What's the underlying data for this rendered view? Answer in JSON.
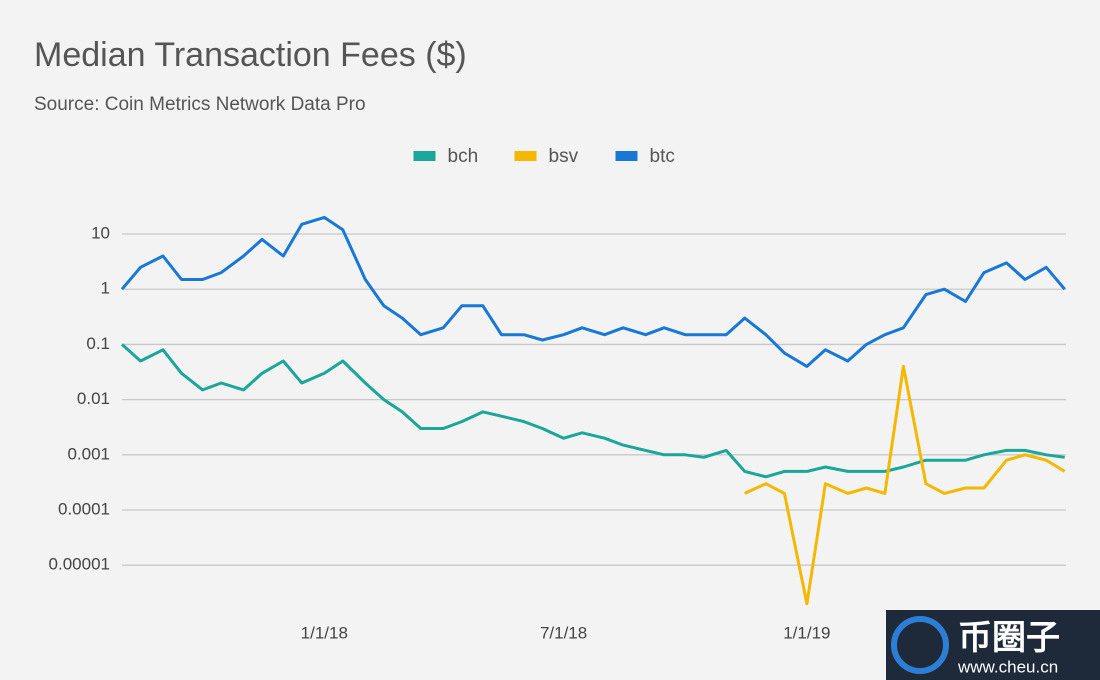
{
  "chart_data": {
    "type": "line",
    "title": "Median Transaction Fees ($)",
    "subtitle": "Source: Coin Metrics Network Data Pro",
    "x": [
      "2017-08-01",
      "2017-08-15",
      "2017-09-01",
      "2017-09-15",
      "2017-10-01",
      "2017-10-15",
      "2017-11-01",
      "2017-11-15",
      "2017-12-01",
      "2017-12-15",
      "2018-01-01",
      "2018-01-15",
      "2018-02-01",
      "2018-02-15",
      "2018-03-01",
      "2018-03-15",
      "2018-04-01",
      "2018-04-15",
      "2018-05-01",
      "2018-05-15",
      "2018-06-01",
      "2018-06-15",
      "2018-07-01",
      "2018-07-15",
      "2018-08-01",
      "2018-08-15",
      "2018-09-01",
      "2018-09-15",
      "2018-10-01",
      "2018-10-15",
      "2018-11-01",
      "2018-11-15",
      "2018-12-01",
      "2018-12-15",
      "2019-01-01",
      "2019-01-15",
      "2019-02-01",
      "2019-02-15",
      "2019-03-01",
      "2019-03-15",
      "2019-04-01",
      "2019-04-15",
      "2019-05-01",
      "2019-05-15",
      "2019-06-01",
      "2019-06-15",
      "2019-07-01",
      "2019-07-15"
    ],
    "series": [
      {
        "name": "bch",
        "color": "#1aa698",
        "values": [
          0.1,
          0.05,
          0.08,
          0.03,
          0.015,
          0.02,
          0.015,
          0.03,
          0.05,
          0.02,
          0.03,
          0.05,
          0.02,
          0.01,
          0.006,
          0.003,
          0.003,
          0.004,
          0.006,
          0.005,
          0.004,
          0.003,
          0.002,
          0.0025,
          0.002,
          0.0015,
          0.0012,
          0.001,
          0.001,
          0.0009,
          0.0012,
          0.0005,
          0.0004,
          0.0005,
          0.0005,
          0.0006,
          0.0005,
          0.0005,
          0.0005,
          0.0006,
          0.0008,
          0.0008,
          0.0008,
          0.001,
          0.0012,
          0.0012,
          0.001,
          0.0009
        ]
      },
      {
        "name": "bsv",
        "color": "#f5b800",
        "values": [
          null,
          null,
          null,
          null,
          null,
          null,
          null,
          null,
          null,
          null,
          null,
          null,
          null,
          null,
          null,
          null,
          null,
          null,
          null,
          null,
          null,
          null,
          null,
          null,
          null,
          null,
          null,
          null,
          null,
          null,
          null,
          0.0002,
          0.0003,
          0.0002,
          2e-06,
          0.0003,
          0.0002,
          0.00025,
          0.0002,
          0.04,
          0.0003,
          0.0002,
          0.00025,
          0.00025,
          0.0008,
          0.001,
          0.0008,
          0.0005
        ]
      },
      {
        "name": "btc",
        "color": "#1878d6",
        "values": [
          1,
          2.5,
          4,
          1.5,
          1.5,
          2,
          4,
          8,
          4,
          15,
          20,
          12,
          1.5,
          0.5,
          0.3,
          0.15,
          0.2,
          0.5,
          0.5,
          0.15,
          0.15,
          0.12,
          0.15,
          0.2,
          0.15,
          0.2,
          0.15,
          0.2,
          0.15,
          0.15,
          0.15,
          0.3,
          0.15,
          0.07,
          0.04,
          0.08,
          0.05,
          0.1,
          0.15,
          0.2,
          0.8,
          1,
          0.6,
          2,
          3,
          1.5,
          2.5,
          1
        ]
      }
    ],
    "log_scale": true,
    "grid": true,
    "xlim": [
      "2017-08-01",
      "2019-07-16"
    ],
    "xticks": [
      {
        "value": "2018-01-01",
        "label": "1/1/18"
      },
      {
        "value": "2018-07-01",
        "label": "7/1/18"
      },
      {
        "value": "2019-01-01",
        "label": "1/1/19"
      }
    ],
    "ylim": [
      1.9e-06,
      35
    ],
    "yticks": [
      10,
      1,
      0.1,
      0.01,
      0.001,
      0.0001,
      1e-05
    ],
    "legend": "top"
  },
  "watermark": {
    "brand": "币圈子",
    "url": "www.cheu.cn"
  }
}
